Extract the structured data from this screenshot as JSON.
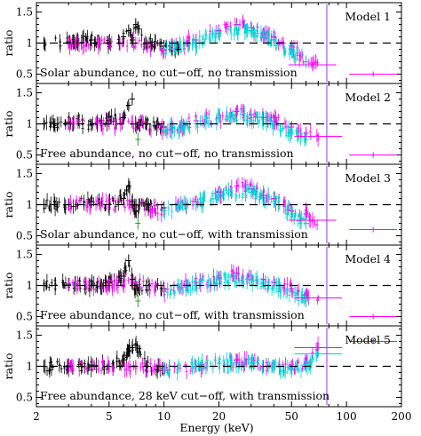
{
  "chart_data": {
    "type": "scatter",
    "xlabel": "Energy (keV)",
    "ylabel": "ratio",
    "xscale": "log",
    "xlim": [
      2,
      200
    ],
    "ylim": [
      0.35,
      1.65
    ],
    "x_ticks": [
      2,
      5,
      10,
      20,
      50,
      100,
      200
    ],
    "x_tick_labels": [
      "2",
      "5",
      "10",
      "20",
      "50",
      "100",
      "200"
    ],
    "y_ticks": [
      0.5,
      1,
      1.5
    ],
    "y_tick_labels": [
      "0.5",
      "1",
      "1.5"
    ],
    "reference_line": 1,
    "colors": {
      "black": "#000000",
      "red": "#e41a1c",
      "green": "#2ca02c",
      "blue": "#1f3bd6",
      "cyan": "#00d0d0",
      "magenta": "#ff00ff",
      "purple": "#9933ff"
    },
    "panels": [
      {
        "model": "Model 1",
        "caption": "Solar abundance, no cut−off, no transmission",
        "series": [
          {
            "color": "black",
            "x": [
              2.2,
              3.0,
              4.0,
              5.0,
              6.0,
              6.4,
              6.7,
              7.0,
              8.0,
              10.0,
              12.0
            ],
            "y": [
              1.0,
              1.02,
              1.05,
              1.0,
              1.1,
              1.2,
              1.05,
              1.3,
              1.0,
              0.95,
              0.9
            ]
          },
          {
            "color": "magenta",
            "x": [
              3,
              5,
              7,
              10,
              15,
              20,
              25,
              30,
              35,
              40,
              45,
              50,
              60,
              65,
              140
            ],
            "y": [
              1.0,
              1.0,
              1.0,
              0.88,
              1.05,
              1.2,
              1.3,
              1.25,
              1.15,
              1.1,
              1.0,
              0.95,
              0.7,
              0.65,
              0.5
            ]
          },
          {
            "color": "cyan",
            "x": [
              10,
              15,
              20,
              25,
              30,
              35,
              40,
              50,
              60
            ],
            "y": [
              0.9,
              1.0,
              1.15,
              1.22,
              1.2,
              1.1,
              1.05,
              0.85,
              0.7
            ]
          }
        ]
      },
      {
        "model": "Model 2",
        "caption": "Free abundance, no cut−off, no transmission",
        "series": [
          {
            "color": "black",
            "x": [
              2.2,
              3.0,
              4.0,
              5.0,
              6.0,
              6.4,
              6.7,
              7.0,
              8.0,
              10.0
            ],
            "y": [
              1.0,
              1.03,
              0.98,
              1.05,
              1.1,
              1.3,
              1.4,
              1.0,
              1.0,
              0.95
            ]
          },
          {
            "color": "magenta",
            "x": [
              3,
              5,
              7,
              10,
              15,
              20,
              25,
              30,
              35,
              40,
              50,
              60,
              70,
              140
            ],
            "y": [
              1.0,
              1.0,
              1.0,
              0.9,
              1.05,
              1.1,
              1.2,
              1.15,
              1.1,
              1.05,
              0.95,
              0.85,
              0.8,
              0.5
            ]
          },
          {
            "color": "green",
            "x": [
              7.2
            ],
            "y": [
              0.75
            ]
          },
          {
            "color": "cyan",
            "x": [
              10,
              15,
              20,
              30,
              40,
              50,
              60
            ],
            "y": [
              0.9,
              1.0,
              1.1,
              1.1,
              1.0,
              0.85,
              0.75
            ]
          }
        ]
      },
      {
        "model": "Model 3",
        "caption": "Solar abundance, no cut−off, with transmission",
        "series": [
          {
            "color": "black",
            "x": [
              2.2,
              3.0,
              4.0,
              5.0,
              6.0,
              6.4,
              6.7,
              7.0,
              8.0,
              10.0
            ],
            "y": [
              1.0,
              1.0,
              1.05,
              1.0,
              1.1,
              1.3,
              1.05,
              0.9,
              1.0,
              0.95
            ]
          },
          {
            "color": "magenta",
            "x": [
              3,
              5,
              7,
              10,
              15,
              20,
              25,
              30,
              35,
              40,
              50,
              60,
              65,
              140
            ],
            "y": [
              1.0,
              1.0,
              1.0,
              0.9,
              1.05,
              1.2,
              1.3,
              1.25,
              1.15,
              1.1,
              0.9,
              0.85,
              0.75,
              0.6
            ]
          },
          {
            "color": "green",
            "x": [
              7.2
            ],
            "y": [
              0.7
            ]
          },
          {
            "color": "cyan",
            "x": [
              10,
              15,
              20,
              30,
              40,
              50,
              60
            ],
            "y": [
              0.9,
              1.0,
              1.15,
              1.2,
              1.05,
              0.85,
              0.7
            ]
          }
        ]
      },
      {
        "model": "Model 4",
        "caption": "Free abundance, no cut−off, with transmission",
        "series": [
          {
            "color": "black",
            "x": [
              2.2,
              3.0,
              4.0,
              5.0,
              6.0,
              6.4,
              6.7,
              7.0,
              8.0,
              10.0
            ],
            "y": [
              1.0,
              1.02,
              1.0,
              1.05,
              1.15,
              1.4,
              1.1,
              0.95,
              1.0,
              0.95
            ]
          },
          {
            "color": "magenta",
            "x": [
              3,
              5,
              7,
              10,
              15,
              20,
              25,
              30,
              35,
              40,
              50,
              60,
              70,
              140
            ],
            "y": [
              1.0,
              1.0,
              1.05,
              0.92,
              1.05,
              1.1,
              1.2,
              1.15,
              1.1,
              1.05,
              0.95,
              0.85,
              0.8,
              0.5
            ]
          },
          {
            "color": "green",
            "x": [
              7.2
            ],
            "y": [
              0.75
            ]
          },
          {
            "color": "cyan",
            "x": [
              10,
              15,
              20,
              30,
              40,
              50,
              60
            ],
            "y": [
              0.9,
              1.0,
              1.1,
              1.1,
              1.0,
              0.9,
              0.75
            ]
          }
        ]
      },
      {
        "model": "Model 5",
        "caption": "Free abundance, 28 keV cut−off, with transmission",
        "series": [
          {
            "color": "black",
            "x": [
              2.2,
              3.0,
              4.0,
              5.0,
              6.0,
              6.4,
              6.7,
              7.0,
              8.0,
              10.0
            ],
            "y": [
              1.0,
              1.0,
              1.02,
              1.0,
              1.1,
              1.25,
              1.3,
              1.35,
              1.0,
              0.95
            ]
          },
          {
            "color": "magenta",
            "x": [
              3,
              5,
              7,
              10,
              15,
              20,
              25,
              30,
              35,
              40,
              50,
              60,
              70,
              140
            ],
            "y": [
              1.0,
              1.0,
              1.0,
              0.95,
              1.0,
              1.05,
              1.1,
              1.05,
              1.0,
              1.0,
              1.0,
              1.05,
              1.3,
              1.4
            ]
          },
          {
            "color": "cyan",
            "x": [
              10,
              15,
              20,
              30,
              40,
              50,
              60,
              70
            ],
            "y": [
              0.95,
              1.0,
              1.05,
              1.05,
              1.0,
              0.95,
              1.0,
              1.2
            ]
          }
        ]
      }
    ]
  }
}
